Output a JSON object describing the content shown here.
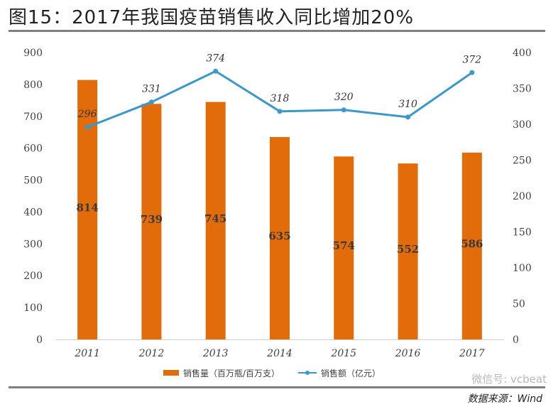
{
  "header": {
    "title": "图15：2017年我国疫苗销售收入同比增加20%"
  },
  "chart_data": {
    "type": "bar",
    "title": "图15：2017年我国疫苗销售收入同比增加20%",
    "categories": [
      "2011",
      "2012",
      "2013",
      "2014",
      "2015",
      "2016",
      "2017"
    ],
    "series": [
      {
        "name": "销售量（百万瓶/百万支）",
        "type": "bar",
        "axis": "left",
        "color": "#e26b0a",
        "values": [
          814,
          739,
          745,
          635,
          574,
          552,
          586
        ]
      },
      {
        "name": "销售额（亿元）",
        "type": "line",
        "axis": "right",
        "color": "#3d98c9",
        "values": [
          296,
          331,
          374,
          318,
          320,
          310,
          372
        ]
      }
    ],
    "y_left": {
      "min": 0,
      "max": 900,
      "step": 100,
      "ticks": [
        "0",
        "100",
        "200",
        "300",
        "400",
        "500",
        "600",
        "700",
        "800",
        "900"
      ]
    },
    "y_right": {
      "min": 0,
      "max": 400,
      "step": 50,
      "ticks": [
        "0",
        "50",
        "100",
        "150",
        "200",
        "250",
        "300",
        "350",
        "400"
      ]
    },
    "legend_position": "bottom",
    "grid": false
  },
  "footer": {
    "watermark": "微信号: vcbeat",
    "source": "数据来源：Wind"
  },
  "colors": {
    "bar": "#e26b0a",
    "line": "#3d98c9",
    "axis_text": "#404040",
    "rule": "#7f7f7f"
  }
}
